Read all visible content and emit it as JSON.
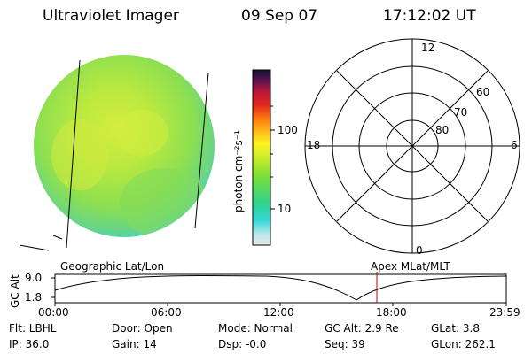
{
  "header": {
    "instrument": "Ultraviolet Imager",
    "date": "09 Sep 07",
    "time": "17:12:02 UT"
  },
  "colorbar": {
    "label": "photon cm⁻²s⁻¹",
    "ticks": [
      "100",
      "10"
    ]
  },
  "polar_plot": {
    "lat_labels": [
      "60",
      "70",
      "80"
    ],
    "mlt_labels": [
      "12",
      "18",
      "6",
      "0"
    ]
  },
  "timeline": {
    "left_label": "Geographic Lat/Lon",
    "right_label": "Apex MLat/MLT",
    "axis_label": "GC Alt",
    "y_ticks": [
      "9.0",
      "1.8"
    ],
    "x_ticks": [
      "00:00",
      "06:00",
      "12:00",
      "18:00",
      "23:59"
    ],
    "marker_color": "#c00000"
  },
  "status": {
    "filter": "Flt: LBHL",
    "ip": "IP: 36.0",
    "door": "Door: Open",
    "gain": "Gain: 14",
    "mode": "Mode: Normal",
    "dsp": "Dsp: -0.0",
    "gc_alt": "GC Alt: 2.9 Re",
    "seq": "Seq: 39",
    "glat": "GLat: 3.8",
    "glon": "GLon: 262.1"
  },
  "colors": {
    "disk_main": "#9be23a",
    "disk_bright": "#e6f02a",
    "disk_edge": "#3fd2cf"
  }
}
